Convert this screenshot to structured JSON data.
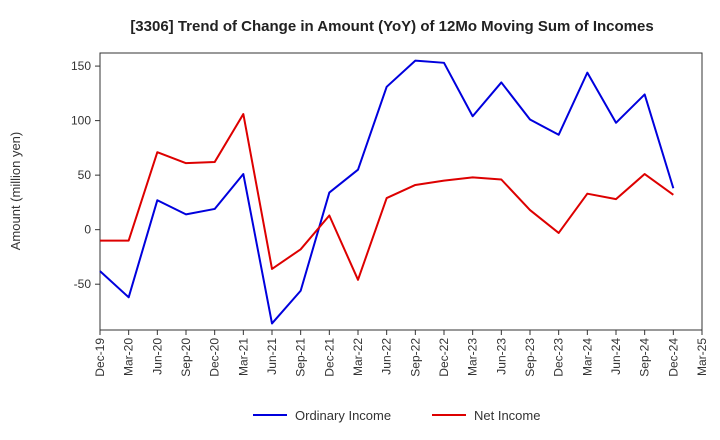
{
  "chart_data": {
    "type": "line",
    "title": "[3306]  Trend of Change in Amount (YoY) of 12Mo Moving Sum of Incomes",
    "xlabel": "",
    "ylabel": "Amount (million yen)",
    "ylim": [
      -92,
      162
    ],
    "yticks": [
      -50,
      0,
      50,
      100,
      150
    ],
    "ytick_labels": [
      "-50",
      "0",
      "50",
      "100",
      "150"
    ],
    "grid": true,
    "legend_position": "bottom-center",
    "categories": [
      "Dec-19",
      "Mar-20",
      "Jun-20",
      "Sep-20",
      "Dec-20",
      "Mar-21",
      "Jun-21",
      "Sep-21",
      "Dec-21",
      "Mar-22",
      "Jun-22",
      "Sep-22",
      "Dec-22",
      "Mar-23",
      "Jun-23",
      "Sep-23",
      "Dec-23",
      "Mar-24",
      "Jun-24",
      "Sep-24",
      "Dec-24",
      "Mar-25"
    ],
    "series": [
      {
        "name": "Ordinary Income",
        "color": "#0000dd",
        "values": [
          -38,
          -62,
          27,
          14,
          19,
          51,
          -86,
          -56,
          34,
          55,
          131,
          155,
          153,
          104,
          135,
          101,
          87,
          144,
          98,
          124,
          38,
          null
        ]
      },
      {
        "name": "Net Income",
        "color": "#dd0000",
        "values": [
          -10,
          -10,
          71,
          61,
          62,
          106,
          -36,
          -18,
          13,
          -46,
          29,
          41,
          45,
          48,
          46,
          18,
          -3,
          33,
          28,
          51,
          32,
          null
        ]
      }
    ]
  }
}
